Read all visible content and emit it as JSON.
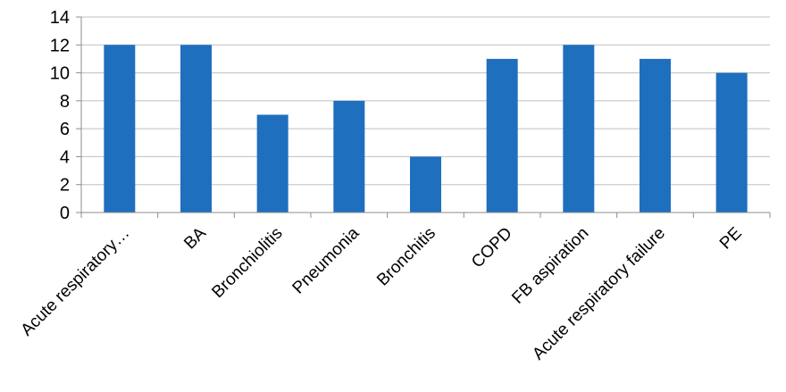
{
  "chart_data": {
    "type": "bar",
    "categories": [
      "Acute respiratory…",
      "BA",
      "Bronchiolitis",
      "Pneumonia",
      "Bronchitis",
      "COPD",
      "FB aspiration",
      "Acute respiratory failure",
      "PE"
    ],
    "values": [
      12,
      12,
      7,
      8,
      4,
      11,
      12,
      11,
      10
    ],
    "ylim": [
      0,
      14
    ],
    "yticks": [
      0,
      2,
      4,
      6,
      8,
      10,
      12,
      14
    ],
    "grid": true,
    "legend": "none",
    "title": "",
    "xlabel": "",
    "ylabel": ""
  },
  "colors": {
    "bar": "#1f6fbf",
    "grid": "#bfbfbf",
    "axis": "#8c8c8c"
  }
}
